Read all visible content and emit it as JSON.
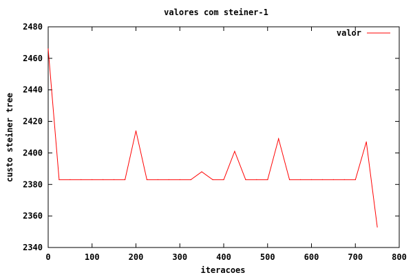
{
  "chart_data": {
    "type": "line",
    "title": "valores com steiner-1",
    "xlabel": "iteracoes",
    "ylabel": "custo steiner tree",
    "xlim": [
      0,
      800
    ],
    "ylim": [
      2340,
      2480
    ],
    "xticks": [
      0,
      100,
      200,
      300,
      400,
      500,
      600,
      700,
      800
    ],
    "yticks": [
      2340,
      2360,
      2380,
      2400,
      2420,
      2440,
      2460,
      2480
    ],
    "grid": false,
    "legend_position": "top-right",
    "series": [
      {
        "name": "valor",
        "color": "#ff0000",
        "x": [
          0,
          25,
          50,
          75,
          100,
          125,
          150,
          175,
          200,
          225,
          250,
          275,
          300,
          325,
          350,
          375,
          400,
          425,
          450,
          475,
          500,
          525,
          550,
          575,
          600,
          625,
          650,
          675,
          700,
          725,
          750
        ],
        "y": [
          2466,
          2383,
          2383,
          2383,
          2383,
          2383,
          2383,
          2383,
          2414,
          2383,
          2383,
          2383,
          2383,
          2383,
          2388,
          2383,
          2383,
          2401,
          2383,
          2383,
          2383,
          2409,
          2383,
          2383,
          2383,
          2383,
          2383,
          2383,
          2383,
          2407,
          2353
        ]
      }
    ]
  }
}
